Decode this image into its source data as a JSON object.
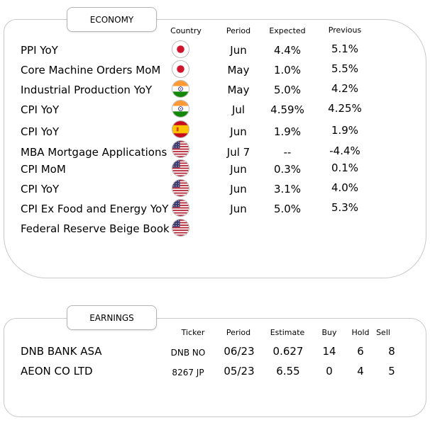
{
  "economy": {
    "title": "ECONOMY",
    "headers": {
      "country": "Country",
      "period": "Period",
      "expected": "Expected",
      "previous": "Previous"
    },
    "rows": [
      {
        "name": "PPI YoY",
        "flag": "japan-flag-icon",
        "period": "Jun",
        "expected": "4.4%",
        "previous": "5.1%"
      },
      {
        "name": "Core Machine Orders MoM",
        "flag": "japan-flag-icon",
        "period": "May",
        "expected": "1.0%",
        "previous": "5.5%"
      },
      {
        "name": "Industrial Production YoY",
        "flag": "india-flag-icon",
        "period": "May",
        "expected": "5.0%",
        "previous": "4.2%"
      },
      {
        "name": "CPI YoY",
        "flag": "india-flag-icon",
        "period": "Jul",
        "expected": "4.59%",
        "previous": "4.25%"
      },
      {
        "name": "CPI YoY",
        "flag": "spain-flag-icon",
        "period": "Jun",
        "expected": "1.9%",
        "previous": "1.9%"
      },
      {
        "name": "MBA Mortgage Applications",
        "flag": "usa-flag-icon",
        "period": "Jul 7",
        "expected": "--",
        "previous": "-4.4%"
      },
      {
        "name": "CPI MoM",
        "flag": "usa-flag-icon",
        "period": "Jun",
        "expected": "0.3%",
        "previous": "0.1%"
      },
      {
        "name": "CPI YoY",
        "flag": "usa-flag-icon",
        "period": "Jun",
        "expected": "3.1%",
        "previous": "4.0%"
      },
      {
        "name": "CPI Ex Food and Energy YoY",
        "flag": "usa-flag-icon",
        "period": "Jun",
        "expected": "5.0%",
        "previous": "5.3%"
      },
      {
        "name": "Federal Reserve Beige Book",
        "flag": "usa-flag-icon",
        "period": "",
        "expected": "",
        "previous": ""
      }
    ]
  },
  "earnings": {
    "title": "EARNINGS",
    "headers": {
      "ticker": "Ticker",
      "period": "Period",
      "estimate": "Estimate",
      "buy": "Buy",
      "hold": "Hold",
      "sell": "Sell"
    },
    "rows": [
      {
        "name": "DNB BANK ASA",
        "ticker": "DNB NO",
        "period": "06/23",
        "estimate": "0.627",
        "buy": "14",
        "hold": "6",
        "sell": "8"
      },
      {
        "name": "AEON CO LTD",
        "ticker": "8267 JP",
        "period": "05/23",
        "estimate": "6.55",
        "buy": "0",
        "hold": "4",
        "sell": "5"
      }
    ]
  },
  "colors": {
    "border": "#c8c8c8",
    "japan_red": "#d0142c",
    "india_saffron": "#ff9933",
    "india_green": "#138808",
    "spain_red": "#c60b1e",
    "spain_yellow": "#ffc400",
    "usa_red": "#b22234",
    "usa_blue": "#3c3b6e"
  }
}
